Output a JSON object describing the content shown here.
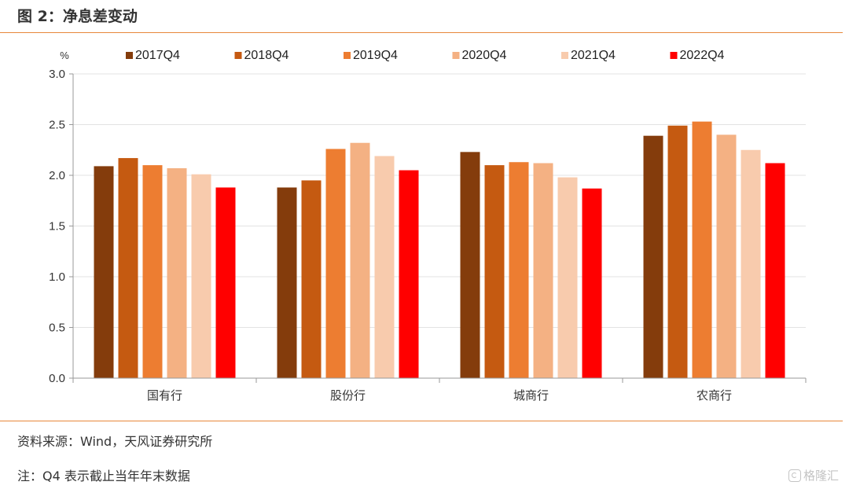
{
  "header": {
    "title": "图 2：净息差变动"
  },
  "footer": {
    "source": "资料来源：Wind，天风证券研究所",
    "note": "注：Q4 表示截止当年年末数据",
    "watermark": "格隆汇"
  },
  "chart_data": {
    "type": "bar",
    "unit": "%",
    "categories": [
      "国有行",
      "股份行",
      "城商行",
      "农商行"
    ],
    "series": [
      {
        "name": "2017Q4",
        "color": "#843c0c",
        "values": [
          2.09,
          1.88,
          2.23,
          2.39
        ]
      },
      {
        "name": "2018Q4",
        "color": "#c55a11",
        "values": [
          2.17,
          1.95,
          2.1,
          2.49
        ]
      },
      {
        "name": "2019Q4",
        "color": "#ed7d31",
        "values": [
          2.1,
          2.26,
          2.13,
          2.53
        ]
      },
      {
        "name": "2020Q4",
        "color": "#f4b183",
        "values": [
          2.07,
          2.32,
          2.12,
          2.4
        ]
      },
      {
        "name": "2021Q4",
        "color": "#f8cbad",
        "values": [
          2.01,
          2.19,
          1.98,
          2.25
        ]
      },
      {
        "name": "2022Q4",
        "color": "#ff0000",
        "values": [
          1.88,
          2.05,
          1.87,
          2.12
        ]
      }
    ],
    "ylim": [
      0,
      3.0
    ],
    "yticks": [
      "0.0",
      "0.5",
      "1.0",
      "1.5",
      "2.0",
      "2.5",
      "3.0"
    ],
    "grid": true,
    "legend": "top"
  }
}
